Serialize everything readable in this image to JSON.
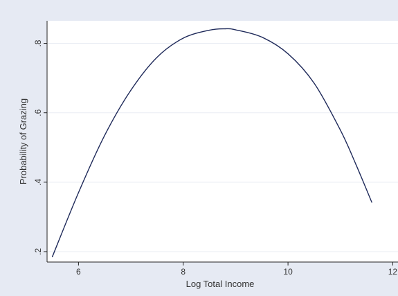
{
  "colors": {
    "outer_background": "#e6eaf3",
    "plot_background": "#ffffff",
    "grid": "#e9ecf3",
    "axis": "#222222",
    "line": "#1f2a5a"
  },
  "chart_data": {
    "type": "line",
    "title": "",
    "xlabel": "Log Total Income",
    "ylabel": "Probability of Grazing",
    "xlim": [
      5.4,
      12.1
    ],
    "ylim": [
      0.17,
      0.865
    ],
    "x_ticks": [
      6,
      8,
      10,
      12
    ],
    "x_tick_labels": [
      "6",
      "8",
      "10",
      "12"
    ],
    "y_ticks": [
      0.2,
      0.4,
      0.6,
      0.8
    ],
    "y_tick_labels": [
      ".2",
      ".4",
      ".6",
      ".8"
    ],
    "grid": "horizontal",
    "legend": "none",
    "series": [
      {
        "x": [
          5.5,
          6.0,
          6.5,
          7.0,
          7.5,
          8.0,
          8.5,
          8.8,
          9.0,
          9.5,
          10.0,
          10.5,
          11.0,
          11.3,
          11.6
        ],
        "y": [
          0.185,
          0.37,
          0.535,
          0.665,
          0.76,
          0.815,
          0.838,
          0.842,
          0.839,
          0.818,
          0.77,
          0.685,
          0.55,
          0.45,
          0.342
        ]
      }
    ]
  }
}
